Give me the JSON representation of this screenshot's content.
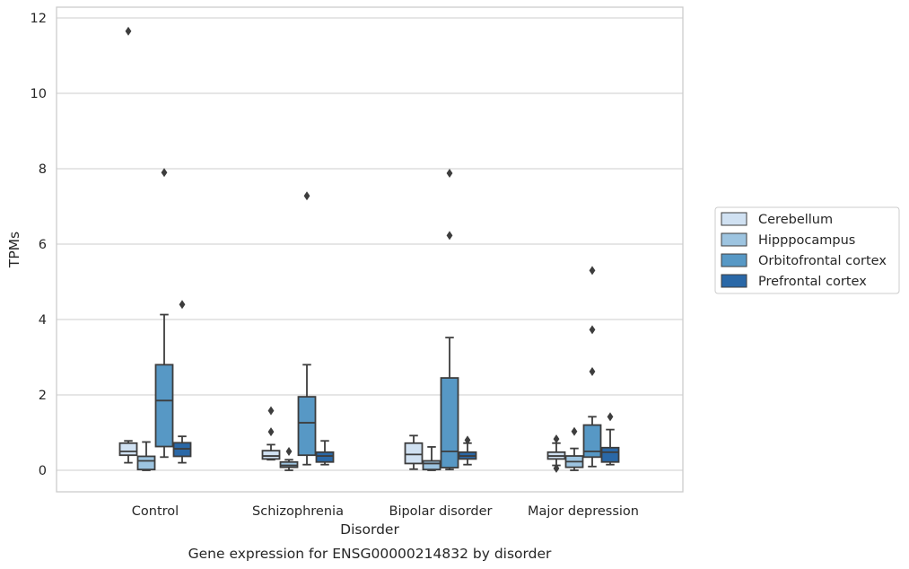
{
  "chart_data": {
    "type": "box",
    "title": "",
    "caption": "Gene expression for ENSG00000214832 by disorder",
    "xlabel": "Disorder",
    "ylabel": "TPMs",
    "ylim": [
      -0.56,
      12.25
    ],
    "yticks": [
      "0",
      "2",
      "4",
      "6",
      "8",
      "10",
      "12"
    ],
    "grid": "horizontal",
    "legend_position": "right",
    "categories": [
      "Control",
      "Schizophrenia",
      "Bipolar disorder",
      "Major depression"
    ],
    "series": [
      {
        "name": "Cerebellum",
        "color": "#d0e1f2",
        "boxes": [
          {
            "whislo": 0.2,
            "q1": 0.4,
            "med": 0.5,
            "q3": 0.72,
            "whishi": 0.78,
            "fliers": [
              11.65
            ]
          },
          {
            "whislo": 0.28,
            "q1": 0.3,
            "med": 0.38,
            "q3": 0.52,
            "whishi": 0.68,
            "fliers": [
              1.02,
              1.58
            ]
          },
          {
            "whislo": 0.03,
            "q1": 0.18,
            "med": 0.42,
            "q3": 0.72,
            "whishi": 0.92,
            "fliers": []
          },
          {
            "whislo": 0.13,
            "q1": 0.3,
            "med": 0.38,
            "q3": 0.48,
            "whishi": 0.72,
            "fliers": [
              0.83,
              0.05
            ]
          }
        ]
      },
      {
        "name": "Hipppocampus",
        "color": "#9dc4e0",
        "boxes": [
          {
            "whislo": 0.0,
            "q1": 0.02,
            "med": 0.25,
            "q3": 0.37,
            "whishi": 0.75,
            "fliers": []
          },
          {
            "whislo": 0.0,
            "q1": 0.08,
            "med": 0.13,
            "q3": 0.22,
            "whishi": 0.28,
            "fliers": [
              0.5
            ]
          },
          {
            "whislo": 0.0,
            "q1": 0.02,
            "med": 0.18,
            "q3": 0.25,
            "whishi": 0.62,
            "fliers": []
          },
          {
            "whislo": 0.0,
            "q1": 0.08,
            "med": 0.23,
            "q3": 0.38,
            "whishi": 0.58,
            "fliers": [
              1.03
            ]
          }
        ]
      },
      {
        "name": "Orbitofrontal cortex",
        "color": "#5798c5",
        "boxes": [
          {
            "whislo": 0.35,
            "q1": 0.63,
            "med": 1.85,
            "q3": 2.8,
            "whishi": 4.13,
            "fliers": [
              7.9
            ]
          },
          {
            "whislo": 0.15,
            "q1": 0.4,
            "med": 1.26,
            "q3": 1.95,
            "whishi": 2.8,
            "fliers": [
              7.28
            ]
          },
          {
            "whislo": 0.02,
            "q1": 0.07,
            "med": 0.5,
            "q3": 2.45,
            "whishi": 3.52,
            "fliers": [
              6.23,
              7.88
            ]
          },
          {
            "whislo": 0.1,
            "q1": 0.35,
            "med": 0.5,
            "q3": 1.2,
            "whishi": 1.42,
            "fliers": [
              2.62,
              3.73,
              5.3
            ]
          }
        ]
      },
      {
        "name": "Prefrontal cortex",
        "color": "#2a68a7",
        "boxes": [
          {
            "whislo": 0.2,
            "q1": 0.37,
            "med": 0.57,
            "q3": 0.73,
            "whishi": 0.9,
            "fliers": [
              4.4
            ]
          },
          {
            "whislo": 0.15,
            "q1": 0.22,
            "med": 0.38,
            "q3": 0.48,
            "whishi": 0.78,
            "fliers": []
          },
          {
            "whislo": 0.15,
            "q1": 0.3,
            "med": 0.38,
            "q3": 0.48,
            "whishi": 0.72,
            "fliers": [
              0.8
            ]
          },
          {
            "whislo": 0.15,
            "q1": 0.22,
            "med": 0.48,
            "q3": 0.6,
            "whishi": 1.08,
            "fliers": [
              1.42
            ]
          }
        ]
      }
    ]
  }
}
